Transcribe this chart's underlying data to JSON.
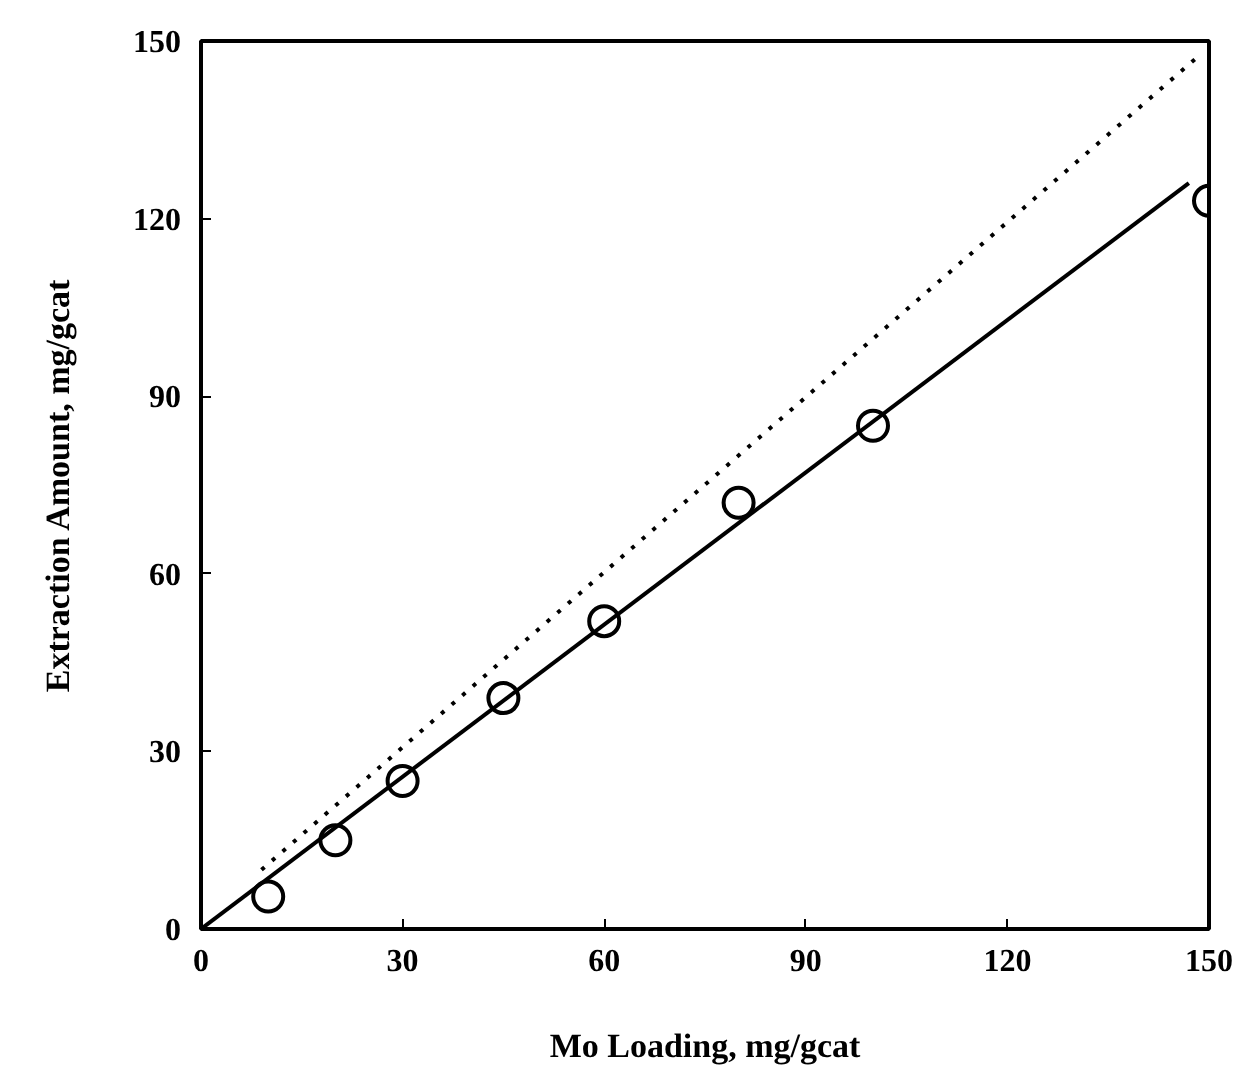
{
  "chart_data": {
    "type": "scatter",
    "xlabel": "Mo Loading, mg/gcat",
    "ylabel": "Extraction Amount, mg/gcat",
    "x": [
      10,
      20,
      30,
      45,
      60,
      80,
      100,
      150
    ],
    "xlim": [
      0,
      150
    ],
    "ylim": [
      0,
      150
    ],
    "xticks": [
      0,
      30,
      60,
      90,
      120,
      150
    ],
    "yticks": [
      0,
      30,
      60,
      90,
      120,
      150
    ],
    "marker": "circle",
    "grid": false,
    "series": [
      {
        "color": "#000000",
        "values": [
          5.5,
          15,
          25,
          39,
          52,
          72,
          85,
          123
        ]
      },
      {
        "type": "line",
        "line_style": "solid",
        "marker": "none",
        "color": "#000000",
        "x": [
          0,
          147
        ],
        "values": [
          0,
          126
        ]
      },
      {
        "type": "line",
        "line_style": "dotted",
        "marker": "none",
        "color": "#000000",
        "x": [
          9,
          149
        ],
        "values": [
          10,
          148
        ]
      }
    ]
  }
}
